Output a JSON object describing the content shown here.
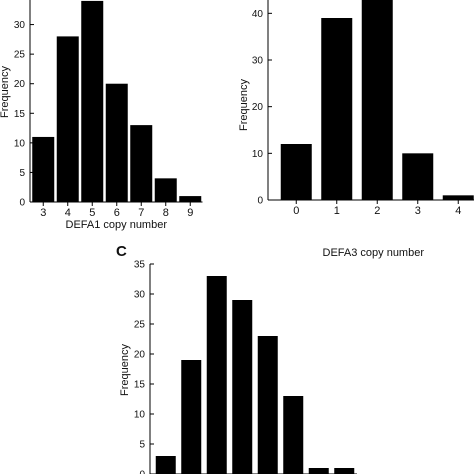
{
  "chart_data": [
    {
      "panel": "",
      "type": "bar",
      "categories": [
        "3",
        "4",
        "5",
        "6",
        "7",
        "8",
        "9"
      ],
      "values": [
        11,
        28,
        34,
        20,
        13,
        4,
        1
      ],
      "xlabel": "DEFA1 copy number",
      "ylabel": "Frequency",
      "ylim": [
        0,
        35
      ],
      "yticks": [
        0,
        5,
        10,
        15,
        20,
        25,
        30
      ],
      "grid": false
    },
    {
      "panel": "",
      "type": "bar",
      "categories": [
        "0",
        "1",
        "2",
        "3",
        "4"
      ],
      "values": [
        12,
        39,
        48,
        10,
        1
      ],
      "xlabel": "DEFA3 copy number",
      "ylabel": "Frequency",
      "ylim": [
        0,
        45
      ],
      "yticks": [
        0,
        10,
        20,
        30,
        40
      ],
      "grid": false
    },
    {
      "panel": "C",
      "type": "bar",
      "categories": [
        "",
        "",
        "",
        "",
        "",
        "",
        "",
        ""
      ],
      "values": [
        3,
        19,
        33,
        29,
        23,
        13,
        1,
        1
      ],
      "xlabel": "",
      "ylabel": "Frequency",
      "ylim": [
        0,
        35
      ],
      "yticks": [
        0,
        5,
        10,
        15,
        20,
        25,
        30,
        35
      ],
      "grid": false
    }
  ]
}
